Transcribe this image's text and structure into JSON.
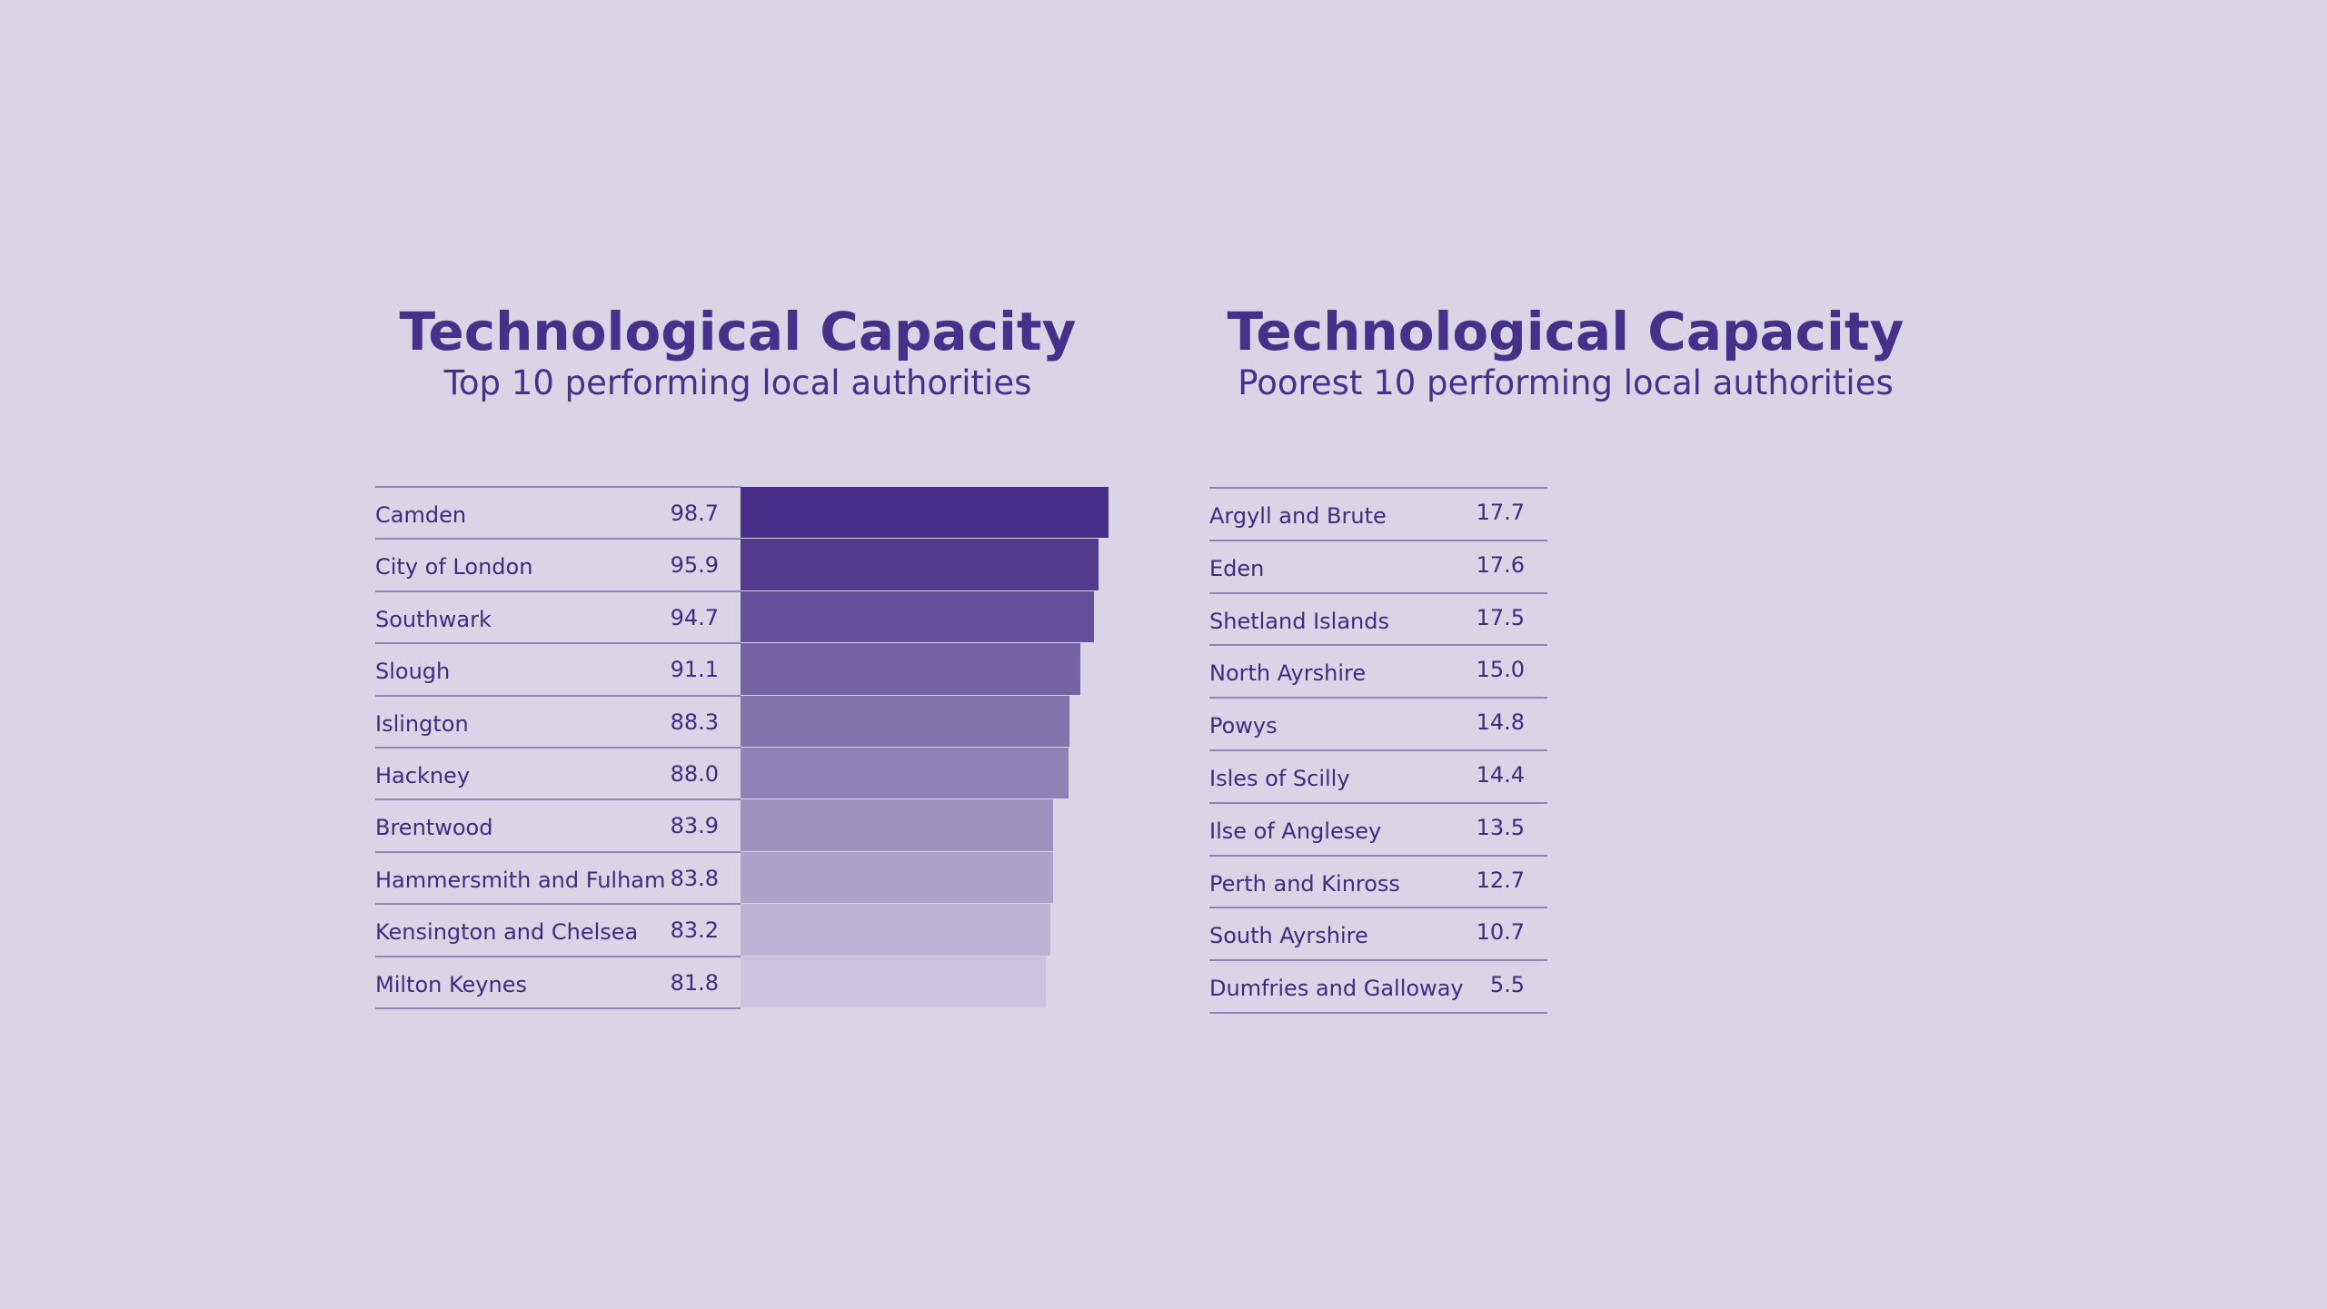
{
  "chart_data": [
    {
      "type": "bar",
      "orientation": "horizontal",
      "title": "Technological Capacity",
      "subtitle": "Top 10 performing local authorities",
      "categories": [
        "Camden",
        "City of London",
        "Southwark",
        "Slough",
        "Islington",
        "Hackney",
        "Brentwood",
        "Hammersmith and Fulham",
        "Kensington and Chelsea",
        "Milton Keynes"
      ],
      "values": [
        98.7,
        95.9,
        94.7,
        91.1,
        88.3,
        88.0,
        83.9,
        83.8,
        83.2,
        81.8
      ],
      "value_labels": [
        "98.7",
        "95.9",
        "94.7",
        "91.1",
        "88.3",
        "88.0",
        "83.9",
        "83.8",
        "83.2",
        "81.8"
      ],
      "bar_colors": [
        "#472e87",
        "#523b8f",
        "#62519a",
        "#7464a4",
        "#8173ab",
        "#8e83b5",
        "#9d93bf",
        "#aca3ca",
        "#bcb4d4",
        "#cbc5dd"
      ],
      "xlim": [
        0,
        98.7
      ]
    },
    {
      "type": "table",
      "title": "Technological Capacity",
      "subtitle": "Poorest 10 performing local authorities",
      "categories": [
        "Argyll and Brute",
        "Eden",
        "Shetland Islands",
        "North Ayrshire",
        "Powys",
        "Isles of Scilly",
        "Ilse of Anglesey",
        "Perth and Kinross",
        "South Ayrshire",
        "Dumfries and Galloway"
      ],
      "values": [
        17.7,
        17.6,
        17.5,
        15.0,
        14.8,
        14.4,
        13.5,
        12.7,
        10.7,
        5.5
      ],
      "value_labels": [
        "17.7",
        "17.6",
        "17.5",
        "15.0",
        "14.8",
        "14.4",
        "13.5",
        "12.7",
        "10.7",
        "5.5"
      ]
    }
  ]
}
